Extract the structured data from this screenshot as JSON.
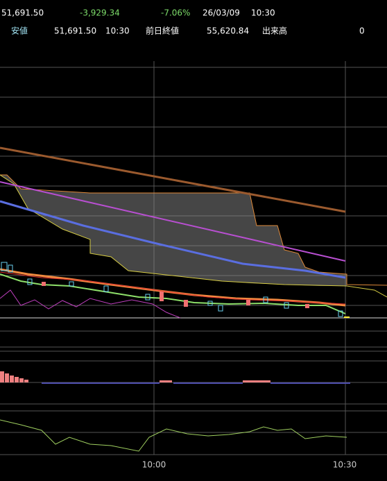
{
  "header": {
    "last": "51,691.50",
    "change": "-3,929.34",
    "change_pct": "-7.06%",
    "date": "26/03/09",
    "time": "10:30",
    "low_label": "安値",
    "low": "51,691.50",
    "low_time": "10:30",
    "prev_close_label": "前日終値",
    "prev_close": "55,620.84",
    "volume_label": "出来高",
    "volume": "0"
  },
  "x_axis": {
    "labels": [
      "10:00",
      "10:30"
    ]
  }
}
